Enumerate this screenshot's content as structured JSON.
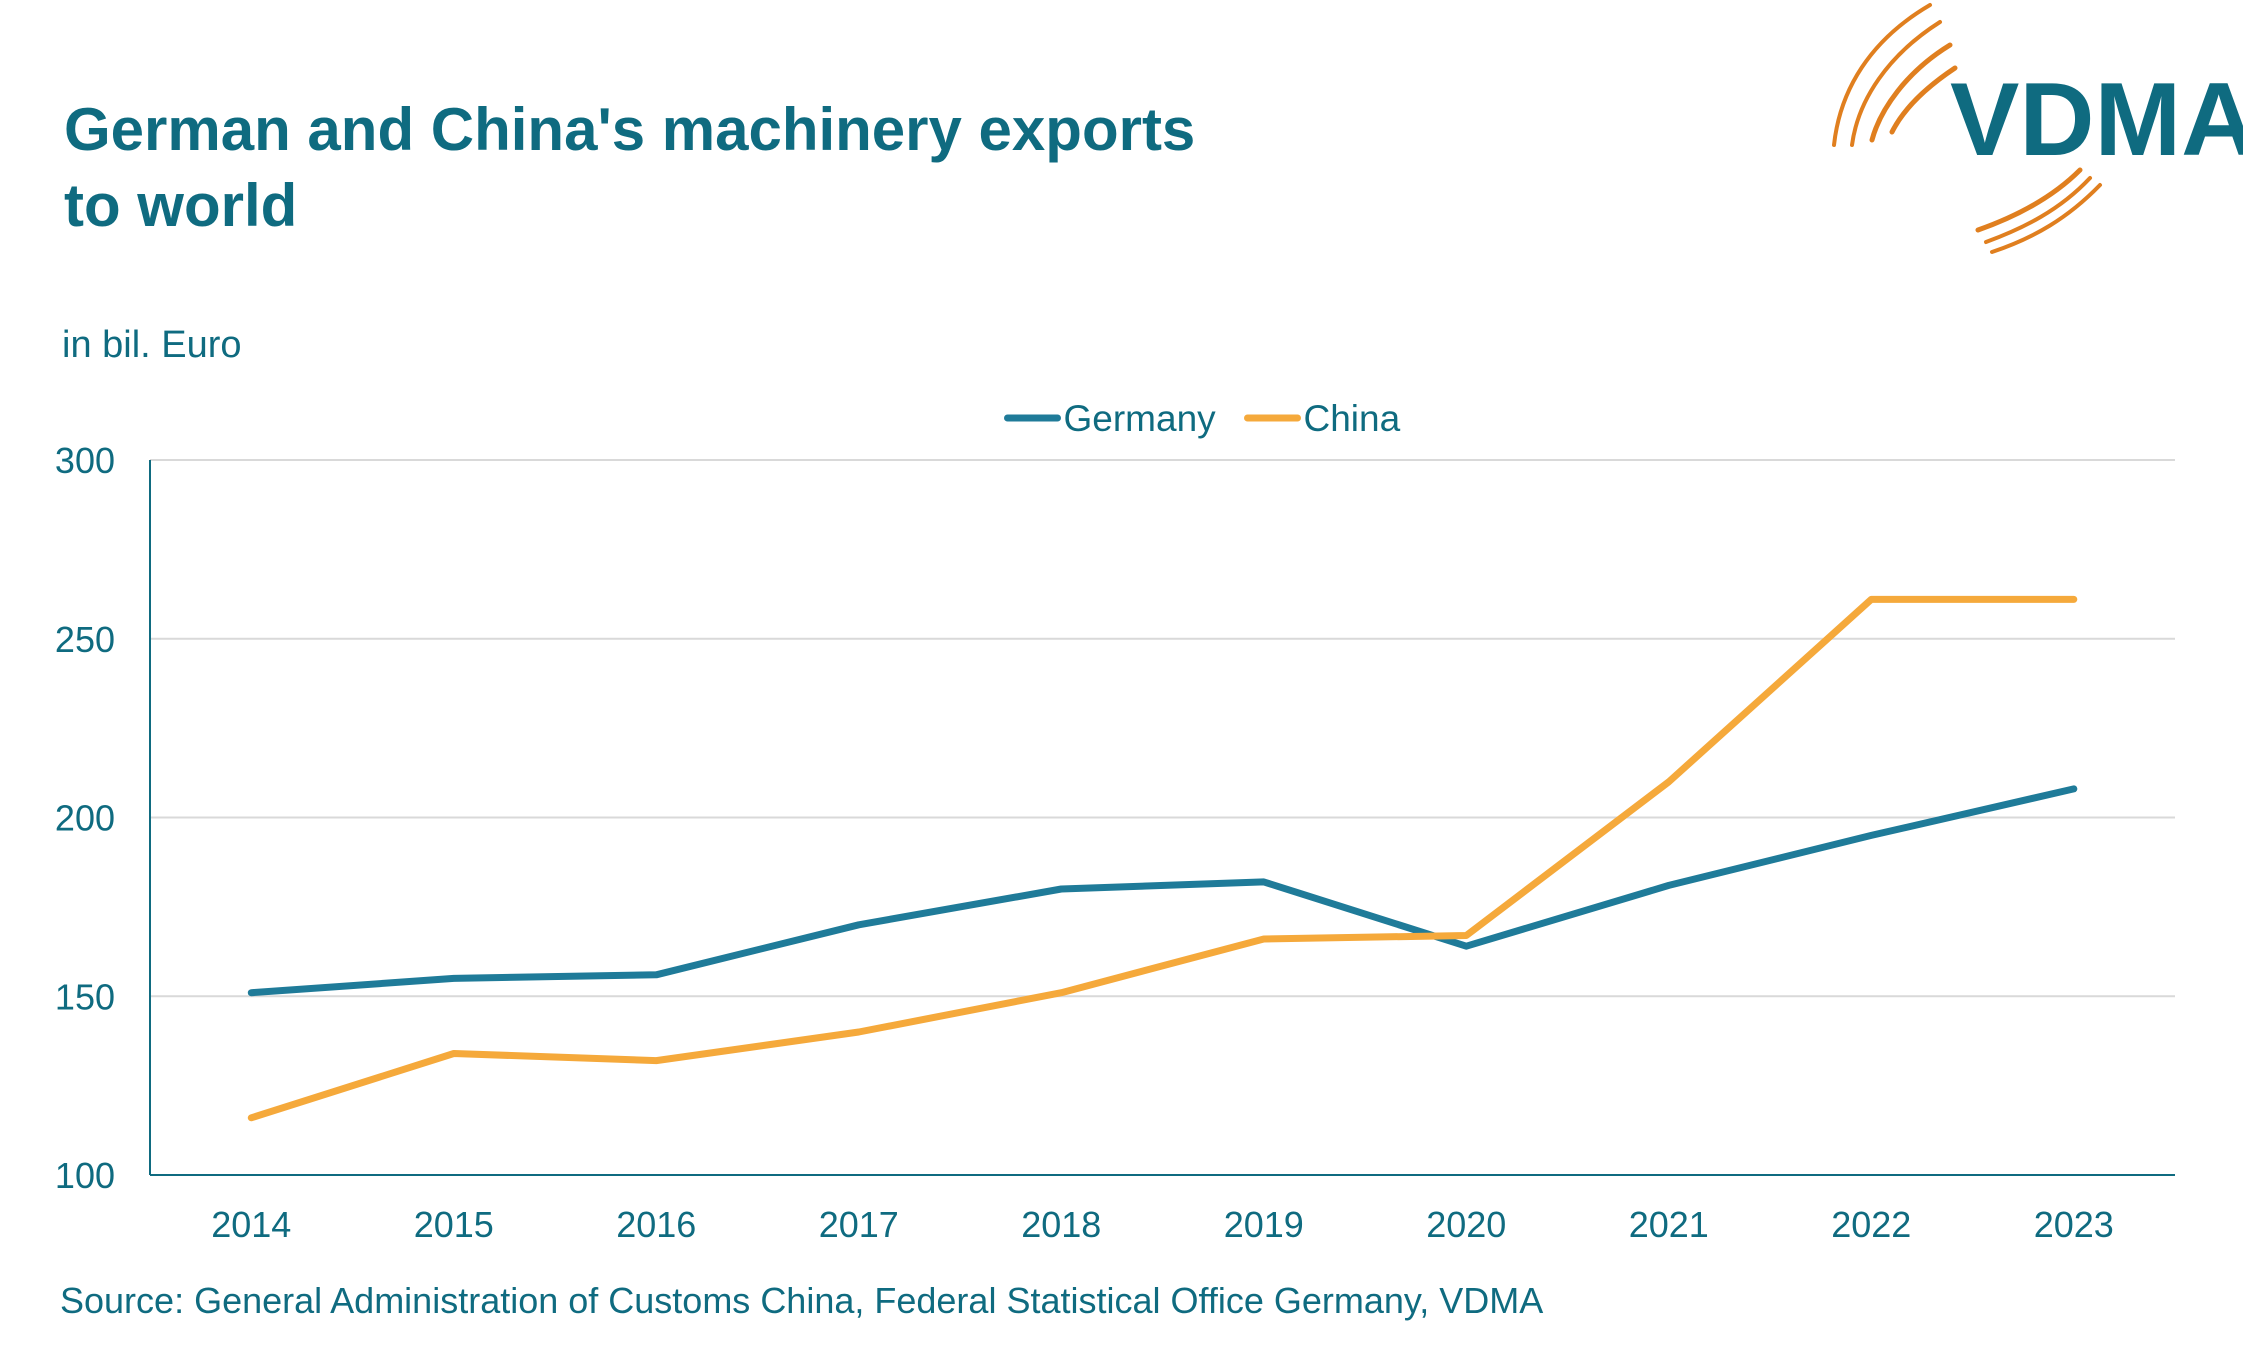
{
  "title_lines": [
    "German and China's machinery exports",
    "to world"
  ],
  "unit_label": "in bil. Euro",
  "source": "Source: General Administration of Customs China, Federal Statistical Office Germany, VDMA",
  "logo": {
    "text": "VDMA",
    "text_color": "#0f6b80",
    "arc_color": "#e07f1f"
  },
  "colors": {
    "text": "#0f6b80",
    "grid": "#d9d9d9",
    "axis": "#0f6b80"
  },
  "chart_data": {
    "type": "line",
    "x": [
      "2014",
      "2015",
      "2016",
      "2017",
      "2018",
      "2019",
      "2020",
      "2021",
      "2022",
      "2023"
    ],
    "ylim": [
      100,
      300
    ],
    "yticks": [
      100,
      150,
      200,
      250,
      300
    ],
    "grid": true,
    "legend_position": "top-center",
    "series": [
      {
        "name": "Germany",
        "color": "#1f7b99",
        "values": [
          151,
          155,
          156,
          170,
          180,
          182,
          164,
          181,
          195,
          208
        ]
      },
      {
        "name": "China",
        "color": "#f5a93b",
        "values": [
          116,
          134,
          132,
          140,
          151,
          166,
          167,
          210,
          261,
          261
        ]
      }
    ]
  }
}
